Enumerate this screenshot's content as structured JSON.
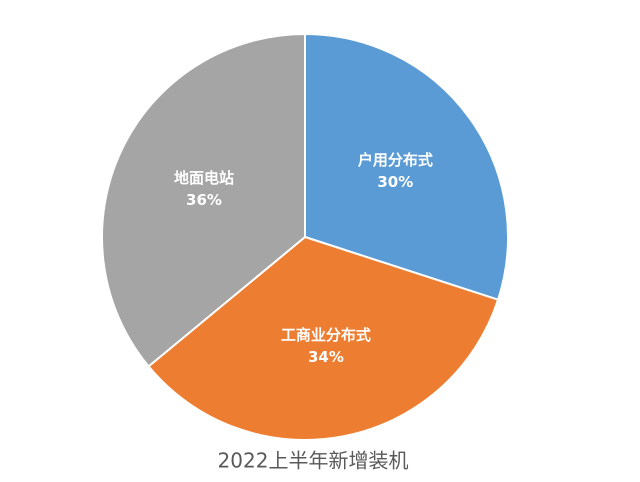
{
  "chart_data": {
    "type": "pie",
    "title": "2022上半年新增装机",
    "categories": [
      "户用分布式",
      "工商业分布式",
      "地面电站"
    ],
    "values": [
      30,
      34,
      36
    ],
    "value_labels": [
      "30%",
      "34%",
      "36%"
    ],
    "colors": [
      "#5b9bd5",
      "#ed7d31",
      "#a5a5a5"
    ]
  }
}
